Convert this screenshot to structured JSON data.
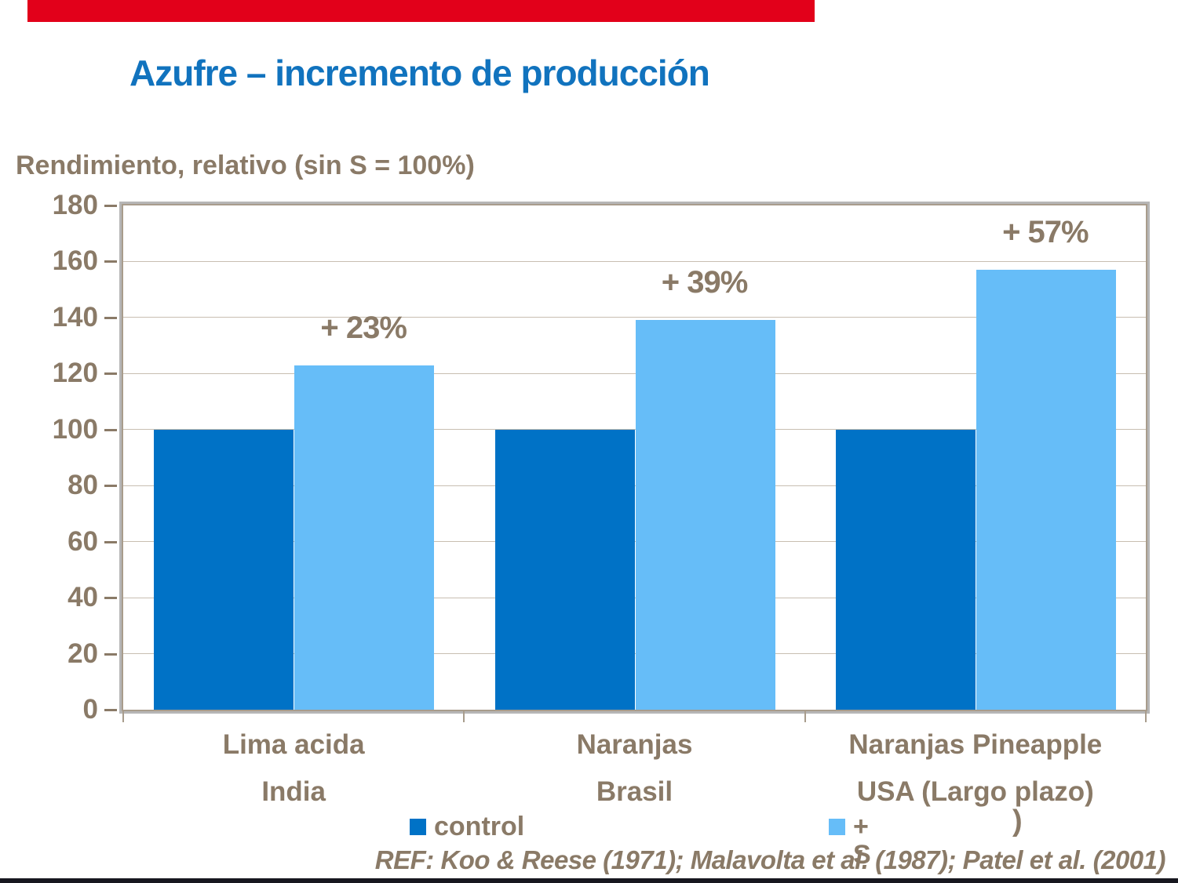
{
  "slide": {
    "title": "Azufre – incremento de producción",
    "ref_text": "REF: Koo & Reese (1971); Malavolta et al. (1987); Patel et al. (2001)"
  },
  "colors": {
    "top_bar_red": "#E2001A",
    "bottom_bar_dark": "#17171F",
    "title_blue": "#1173BE",
    "control_blue": "#0072C6",
    "plus_s_blue": "#66BDF8",
    "text_brown": "#8A7A67",
    "gridline_tan": "#C8BEB1",
    "frame_tan": "#A89C8C",
    "frame_shadow_gray": "#B6B6B6"
  },
  "chart_data": {
    "type": "bar",
    "title": "Azufre – incremento de producción",
    "xlabel": "",
    "ylabel": "Rendimiento, relativo (sin S = 100%)",
    "ylim": [
      0,
      180
    ],
    "ytick_step": 20,
    "grid": true,
    "legend_position": "bottom",
    "categories": [
      [
        "Lima acida",
        "India"
      ],
      [
        "Naranjas",
        "Brasil"
      ],
      [
        "Naranjas Pineapple",
        "USA (Largo plazo)"
      ]
    ],
    "series": [
      {
        "name": "control",
        "color": "#0072C6",
        "values": [
          100,
          100,
          100
        ]
      },
      {
        "name": "+ S",
        "color": "#66BDF8",
        "values": [
          123,
          139,
          157
        ]
      }
    ],
    "annotations": [
      "+ 23%",
      "+ 39%",
      "+ 57%"
    ]
  },
  "legend": {
    "control_label": "control",
    "s_label": "+ S",
    "stray_paren": ")"
  }
}
